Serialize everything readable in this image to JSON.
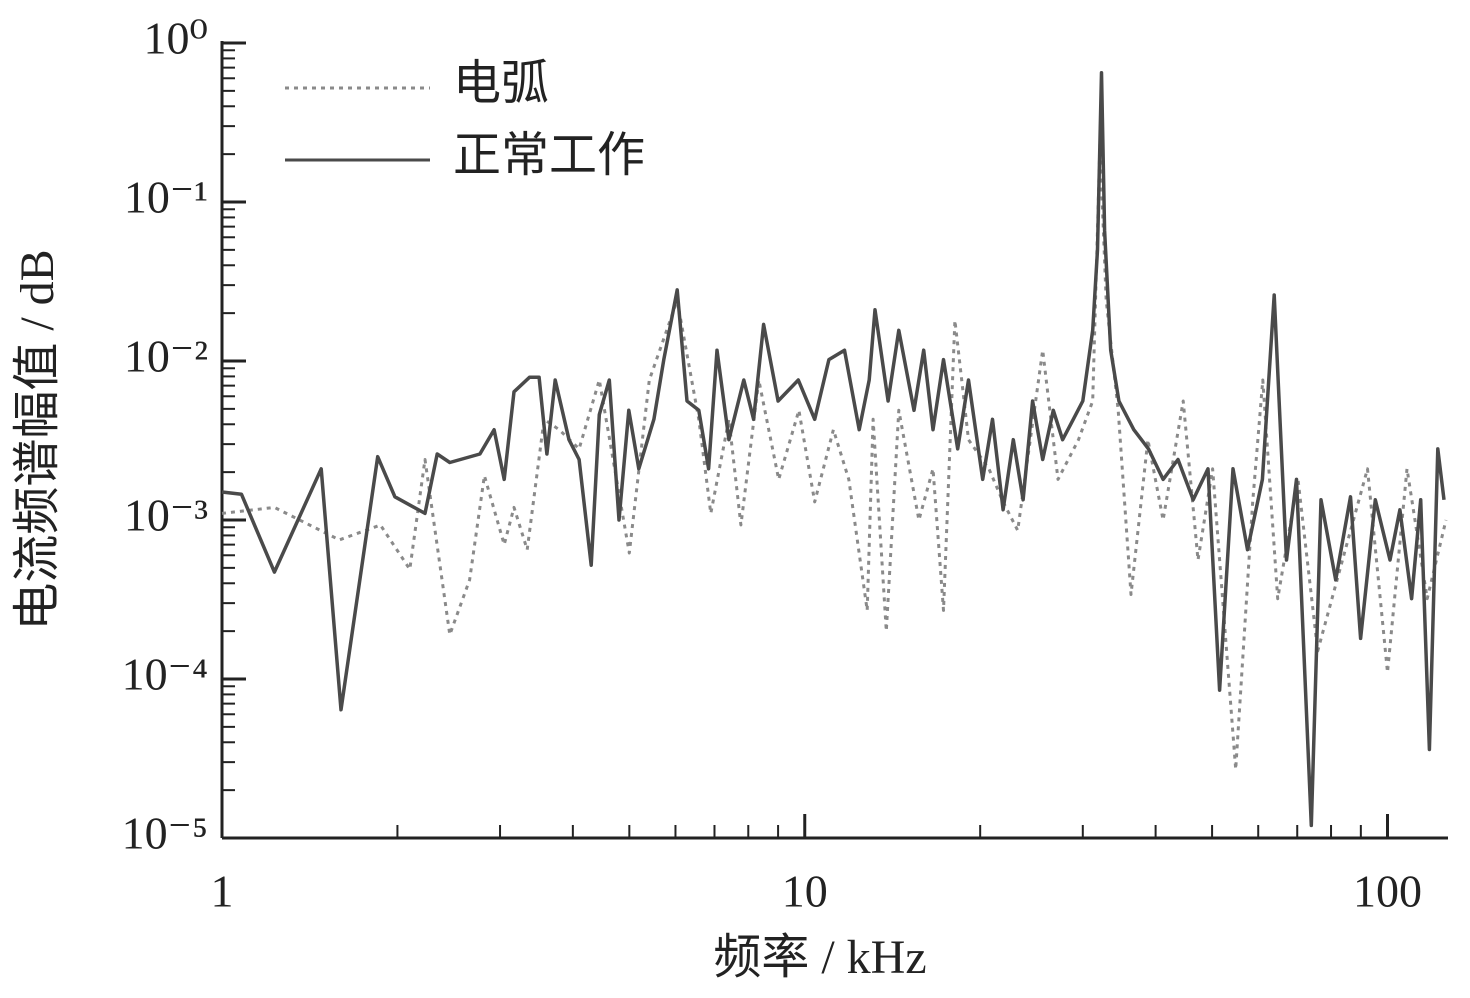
{
  "chart_data": {
    "type": "line",
    "xlabel": "频率 / kHz",
    "ylabel": "电流频谱幅值 / dB",
    "xscale": "log",
    "yscale": "log",
    "legend": "upper left",
    "xlim": [
      1,
      127
    ],
    "ylim": [
      1e-05,
      1
    ],
    "xticks": [
      1,
      10,
      100
    ],
    "xminorticks": [
      2,
      3,
      4,
      5,
      6,
      7,
      8,
      9,
      20,
      30,
      40,
      50,
      60,
      70,
      80,
      90
    ],
    "yticks": [
      {
        "value": 1,
        "label": "10⁰"
      },
      {
        "value": 0.1,
        "label": "10⁻¹"
      },
      {
        "value": 0.01,
        "label": "10⁻²"
      },
      {
        "value": 0.001,
        "label": "10⁻³"
      },
      {
        "value": 0.0001,
        "label": "10⁻⁴"
      },
      {
        "value": 1e-05,
        "label": "10⁻⁵"
      }
    ],
    "yminorticks": [
      2e-05,
      3e-05,
      4e-05,
      5e-05,
      6e-05,
      7e-05,
      8e-05,
      9e-05,
      0.0002,
      0.0003,
      0.0004,
      0.0005,
      0.0006,
      0.0007,
      0.0008,
      0.0009,
      0.002,
      0.003,
      0.004,
      0.005,
      0.006,
      0.007,
      0.008,
      0.009,
      0.02,
      0.03,
      0.04,
      0.05,
      0.06,
      0.07,
      0.08,
      0.09,
      0.2,
      0.3,
      0.4,
      0.5,
      0.6,
      0.7,
      0.8,
      0.9
    ],
    "series": [
      {
        "name": "电弧",
        "color": "#8a8a8a",
        "dash": "dotted",
        "x": [
          1,
          1.23,
          1.59,
          1.87,
          2.1,
          2.23,
          2.46,
          2.66,
          2.82,
          3.05,
          3.17,
          3.34,
          3.57,
          3.79,
          4.1,
          4.44,
          5.0,
          5.41,
          6.04,
          6.58,
          6.9,
          7.41,
          7.77,
          8.34,
          9.02,
          9.77,
          10.4,
          11.2,
          11.9,
          12.8,
          13.1,
          13.8,
          14.5,
          15.7,
          16.6,
          17.3,
          18.1,
          19.1,
          20.7,
          21.9,
          23.2,
          25.6,
          27.2,
          29.5,
          31.2,
          32.1,
          32.9,
          34.5,
          36.3,
          38.8,
          41.2,
          44.6,
          47.3,
          50.1,
          54.9,
          58.7,
          61.1,
          64.8,
          70.2,
          75.9,
          83.7,
          92.4,
          100,
          108,
          117,
          126
        ],
        "values": [
          0.0011,
          0.0012,
          0.00075,
          0.00093,
          0.00049,
          0.0024,
          0.00019,
          0.00042,
          0.0019,
          0.0007,
          0.0012,
          0.00065,
          0.0043,
          0.0037,
          0.0028,
          0.0076,
          0.00062,
          0.0076,
          0.024,
          0.0043,
          0.0011,
          0.0043,
          0.00093,
          0.0076,
          0.0018,
          0.0049,
          0.0013,
          0.0037,
          0.0018,
          0.00027,
          0.0043,
          0.0002,
          0.0049,
          0.001,
          0.0021,
          0.00027,
          0.018,
          0.0032,
          0.0021,
          0.0013,
          0.00086,
          0.0117,
          0.0018,
          0.0032,
          0.0056,
          0.23,
          0.024,
          0.0049,
          0.00034,
          0.0032,
          0.001,
          0.0056,
          0.00056,
          0.0021,
          2.7e-05,
          0.0013,
          0.0076,
          0.00032,
          0.0018,
          0.00015,
          0.00056,
          0.0021,
          0.00011,
          0.0021,
          0.00032,
          0.001
        ]
      },
      {
        "name": "正常工作",
        "color": "#4a4a4a",
        "dash": "solid",
        "x": [
          1,
          1.08,
          1.23,
          1.48,
          1.6,
          1.85,
          1.98,
          2.23,
          2.34,
          2.46,
          2.77,
          2.93,
          3.05,
          3.17,
          3.37,
          3.5,
          3.61,
          3.73,
          3.94,
          4.1,
          4.3,
          4.44,
          4.62,
          4.8,
          4.99,
          5.19,
          5.51,
          5.73,
          6.04,
          6.28,
          6.58,
          6.84,
          7.07,
          7.41,
          7.86,
          8.17,
          8.5,
          9.0,
          9.75,
          10.4,
          11.0,
          11.7,
          12.4,
          12.9,
          13.2,
          13.9,
          14.5,
          15.4,
          16.0,
          16.6,
          17.3,
          18.3,
          19.1,
          20.2,
          21.0,
          21.9,
          22.8,
          23.7,
          24.6,
          25.6,
          26.7,
          27.7,
          28.9,
          30.0,
          31.2,
          31.8,
          32.3,
          32.7,
          33.5,
          34.6,
          36.7,
          38.9,
          41.2,
          43.7,
          46.4,
          49.2,
          51.5,
          54.3,
          57.5,
          61.0,
          63.9,
          67.1,
          69.8,
          74.0,
          76.9,
          81.5,
          86.4,
          89.9,
          95.3,
          101,
          105,
          110,
          114,
          118,
          122,
          125
        ],
        "values": [
          0.0015,
          0.00145,
          0.00047,
          0.0021,
          6.4e-05,
          0.0025,
          0.0014,
          0.0011,
          0.0026,
          0.0023,
          0.0026,
          0.0037,
          0.0018,
          0.0064,
          0.0079,
          0.0079,
          0.0026,
          0.0076,
          0.0032,
          0.0024,
          0.00052,
          0.0046,
          0.0076,
          0.001,
          0.0049,
          0.0021,
          0.0043,
          0.0102,
          0.028,
          0.0056,
          0.0049,
          0.0021,
          0.0117,
          0.0032,
          0.0076,
          0.0043,
          0.017,
          0.0056,
          0.0076,
          0.0043,
          0.0102,
          0.0117,
          0.0037,
          0.0076,
          0.021,
          0.0056,
          0.0156,
          0.0049,
          0.0117,
          0.0037,
          0.0102,
          0.0028,
          0.0076,
          0.0018,
          0.0043,
          0.00116,
          0.0032,
          0.00134,
          0.0056,
          0.0024,
          0.0049,
          0.0032,
          0.0043,
          0.0056,
          0.0156,
          0.05,
          0.65,
          0.066,
          0.0117,
          0.0056,
          0.0037,
          0.0028,
          0.0018,
          0.0024,
          0.00134,
          0.0021,
          8.5e-05,
          0.0021,
          0.00065,
          0.0018,
          0.026,
          0.00056,
          0.0018,
          1.2e-05,
          0.00134,
          0.00042,
          0.0014,
          0.00018,
          0.00134,
          0.00056,
          0.00116,
          0.00032,
          0.00134,
          3.6e-05,
          0.0028,
          0.00134
        ]
      }
    ]
  }
}
